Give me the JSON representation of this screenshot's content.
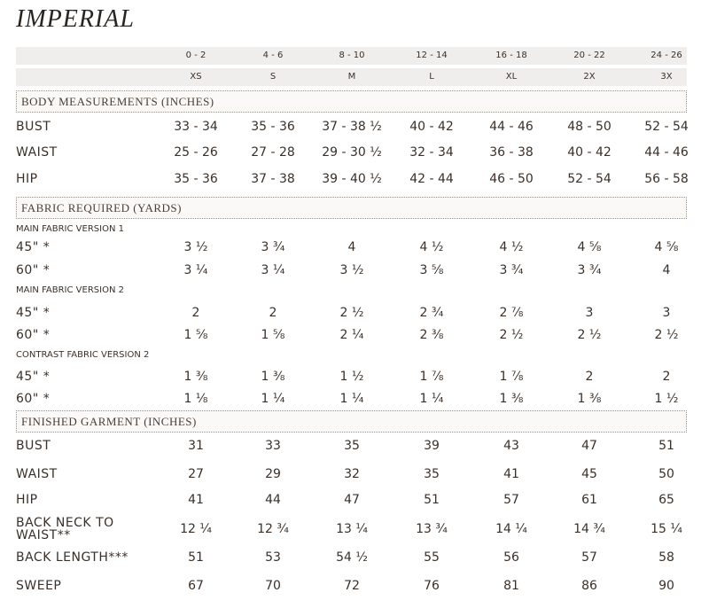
{
  "title": "IMPERIAL",
  "header": {
    "sizes": [
      "0 - 2",
      "4 - 6",
      "8 - 10",
      "12 - 14",
      "16 - 18",
      "20 - 22",
      "24 - 26"
    ],
    "letters": [
      "XS",
      "S",
      "M",
      "L",
      "XL",
      "2X",
      "3X"
    ]
  },
  "sections": [
    {
      "title": "BODY MEASUREMENTS (INCHES)",
      "rows": [
        {
          "label": "BUST",
          "values": [
            "33 - 34",
            "35 - 36",
            "37 - 38 ½",
            "40 - 42",
            "44 - 46",
            "48 - 50",
            "52 - 54"
          ]
        },
        {
          "label": "WAIST",
          "values": [
            "25 - 26",
            "27 - 28",
            "29 - 30 ½",
            "32 - 34",
            "36 - 38",
            "40 - 42",
            "44 - 46"
          ]
        },
        {
          "label": "HIP",
          "values": [
            "35 - 36",
            "37 - 38",
            "39 - 40 ½",
            "42 - 44",
            "46 - 50",
            "52 - 54",
            "56 - 58"
          ]
        }
      ]
    },
    {
      "title": "FABRIC REQUIRED (YARDS)",
      "rows": [
        {
          "subheading": "MAIN FABRIC VERSION 1"
        },
        {
          "label": "45\" *",
          "values": [
            "3 ½",
            "3 ¾",
            "4",
            "4 ½",
            "4 ½",
            "4 ⅝",
            "4 ⅝"
          ]
        },
        {
          "label": "60\" *",
          "values": [
            "3 ¼",
            "3 ¼",
            "3 ½",
            "3 ⅝",
            "3 ¾",
            "3 ¾",
            "4"
          ]
        },
        {
          "subheading": "MAIN FABRIC VERSION 2"
        },
        {
          "label": "45\" *",
          "values": [
            "2",
            "2",
            "2 ½",
            "2 ¾",
            "2 ⅞",
            "3",
            "3"
          ]
        },
        {
          "label": "60\" *",
          "values": [
            "1 ⅝",
            "1 ⅝",
            "2 ¼",
            "2 ⅜",
            "2 ½",
            "2 ½",
            "2 ½"
          ]
        },
        {
          "subheading": "CONTRAST FABRIC VERSION 2"
        },
        {
          "label": "45\" *",
          "values": [
            "1 ⅜",
            "1 ⅜",
            "1 ½",
            "1 ⅞",
            "1 ⅞",
            "2",
            "2"
          ]
        },
        {
          "label": "60\" *",
          "values": [
            "1 ⅛",
            "1 ¼",
            "1 ¼",
            "1 ¼",
            "1 ⅜",
            "1 ⅜",
            "1 ½"
          ]
        }
      ]
    },
    {
      "title": "FINISHED GARMENT (INCHES)",
      "rows": [
        {
          "label": "BUST",
          "values": [
            "31",
            "33",
            "35",
            "39",
            "43",
            "47",
            "51"
          ]
        },
        {
          "label": "WAIST",
          "values": [
            "27",
            "29",
            "32",
            "35",
            "41",
            "45",
            "50"
          ]
        },
        {
          "label": "HIP",
          "values": [
            "41",
            "44",
            "47",
            "51",
            "57",
            "61",
            "65"
          ]
        },
        {
          "label": "BACK NECK TO WAIST**",
          "values": [
            "12 ¼",
            "12 ¾",
            "13 ¼",
            "13 ¾",
            "14 ¼",
            "14 ¾",
            "15 ¼"
          ]
        },
        {
          "label": "BACK LENGTH***",
          "values": [
            "51",
            "53",
            "54 ½",
            "55",
            "56",
            "57",
            "58"
          ]
        },
        {
          "label": "SWEEP",
          "values": [
            "67",
            "70",
            "72",
            "76",
            "81",
            "86",
            "90"
          ]
        }
      ]
    }
  ]
}
